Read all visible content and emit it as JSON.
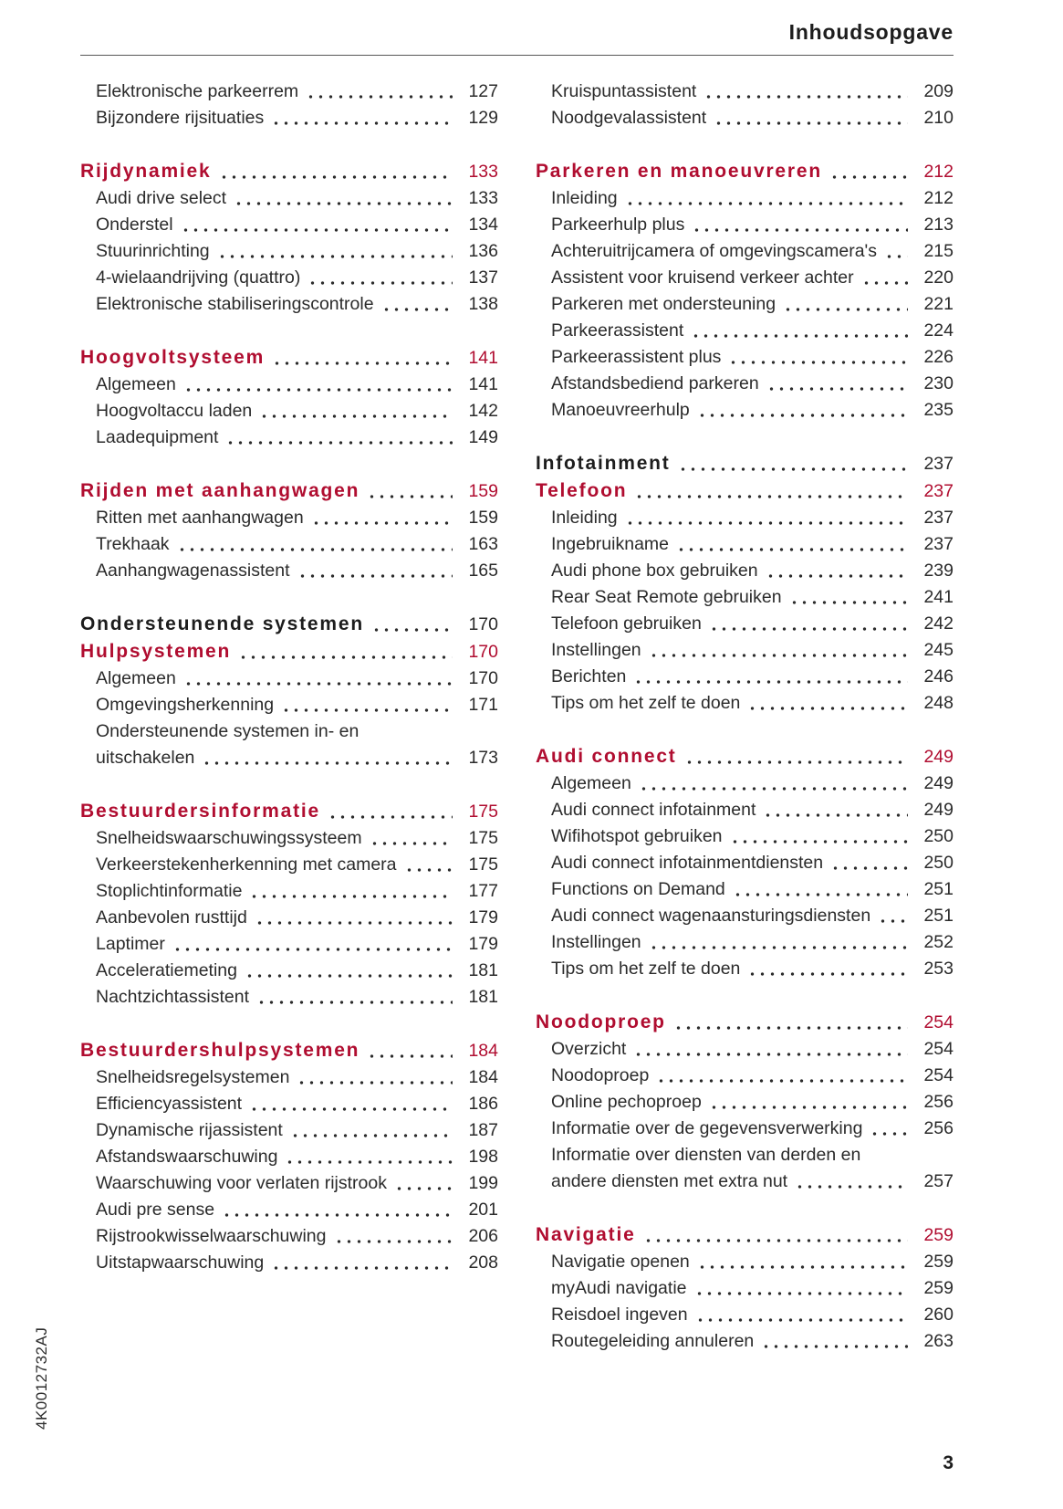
{
  "page": {
    "header_title": "Inhoudsopgave",
    "page_number": "3",
    "spine_code": "4K0012732AJ"
  },
  "colors": {
    "accent_red": "#b00d30",
    "text_dark": "#1d1d1d",
    "text_body": "#2b2b2b",
    "rule_gray": "#575757"
  },
  "toc": {
    "columns": [
      {
        "groups": [
          {
            "entries": [
              {
                "label": "Elektronische parkeerrem",
                "page": "127",
                "style": "sub"
              },
              {
                "label": "Bijzondere rijsituaties",
                "page": "129",
                "style": "sub"
              }
            ]
          },
          {
            "entries": [
              {
                "label": "Rijdynamiek",
                "page": "133",
                "style": "red"
              },
              {
                "label": "Audi drive select",
                "page": "133",
                "style": "sub"
              },
              {
                "label": "Onderstel",
                "page": "134",
                "style": "sub"
              },
              {
                "label": "Stuurinrichting",
                "page": "136",
                "style": "sub"
              },
              {
                "label": "4-wielaandrijving (quattro)",
                "page": "137",
                "style": "sub"
              },
              {
                "label": "Elektronische stabiliseringscontrole",
                "page": "138",
                "style": "sub"
              }
            ]
          },
          {
            "entries": [
              {
                "label": "Hoogvoltsysteem",
                "page": "141",
                "style": "red"
              },
              {
                "label": "Algemeen",
                "page": "141",
                "style": "sub"
              },
              {
                "label": "Hoogvoltaccu laden",
                "page": "142",
                "style": "sub"
              },
              {
                "label": "Laadequipment",
                "page": "149",
                "style": "sub"
              }
            ]
          },
          {
            "entries": [
              {
                "label": "Rijden met aanhangwagen",
                "page": "159",
                "style": "red"
              },
              {
                "label": "Ritten met aanhangwagen",
                "page": "159",
                "style": "sub"
              },
              {
                "label": "Trekhaak",
                "page": "163",
                "style": "sub"
              },
              {
                "label": "Aanhangwagenassistent",
                "page": "165",
                "style": "sub"
              }
            ]
          },
          {
            "entries": [
              {
                "label": "Ondersteunende systemen",
                "page": "170",
                "style": "black"
              },
              {
                "label": "Hulpsystemen",
                "page": "170",
                "style": "red"
              },
              {
                "label": "Algemeen",
                "page": "170",
                "style": "sub"
              },
              {
                "label": "Omgevingsherkenning",
                "page": "171",
                "style": "sub"
              },
              {
                "label": "Ondersteunende systemen in- en",
                "page": "",
                "style": "sub"
              },
              {
                "label": "uitschakelen",
                "page": "173",
                "style": "sub"
              }
            ]
          },
          {
            "entries": [
              {
                "label": "Bestuurdersinformatie",
                "page": "175",
                "style": "red"
              },
              {
                "label": "Snelheidswaarschuwingssysteem",
                "page": "175",
                "style": "sub"
              },
              {
                "label": "Verkeerstekenherkenning met camera",
                "page": "175",
                "style": "sub"
              },
              {
                "label": "Stoplichtinformatie",
                "page": "177",
                "style": "sub"
              },
              {
                "label": "Aanbevolen rusttijd",
                "page": "179",
                "style": "sub"
              },
              {
                "label": "Laptimer",
                "page": "179",
                "style": "sub"
              },
              {
                "label": "Acceleratiemeting",
                "page": "181",
                "style": "sub"
              },
              {
                "label": "Nachtzichtassistent",
                "page": "181",
                "style": "sub"
              }
            ]
          },
          {
            "entries": [
              {
                "label": "Bestuurdershulpsystemen",
                "page": "184",
                "style": "red"
              },
              {
                "label": "Snelheidsregelsystemen",
                "page": "184",
                "style": "sub"
              },
              {
                "label": "Efficiencyassistent",
                "page": "186",
                "style": "sub"
              },
              {
                "label": "Dynamische rijassistent",
                "page": "187",
                "style": "sub"
              },
              {
                "label": "Afstandswaarschuwing",
                "page": "198",
                "style": "sub"
              },
              {
                "label": "Waarschuwing voor verlaten rijstrook",
                "page": "199",
                "style": "sub"
              },
              {
                "label": "Audi pre sense",
                "page": "201",
                "style": "sub"
              },
              {
                "label": "Rijstrookwisselwaarschuwing",
                "page": "206",
                "style": "sub"
              },
              {
                "label": "Uitstapwaarschuwing",
                "page": "208",
                "style": "sub"
              }
            ]
          }
        ]
      },
      {
        "groups": [
          {
            "entries": [
              {
                "label": "Kruispuntassistent",
                "page": "209",
                "style": "sub"
              },
              {
                "label": "Noodgevalassistent",
                "page": "210",
                "style": "sub"
              }
            ]
          },
          {
            "entries": [
              {
                "label": "Parkeren en manoeuvreren",
                "page": "212",
                "style": "red"
              },
              {
                "label": "Inleiding",
                "page": "212",
                "style": "sub"
              },
              {
                "label": "Parkeerhulp plus",
                "page": "213",
                "style": "sub"
              },
              {
                "label": "Achteruitrijcamera of omgevingscamera's",
                "page": "215",
                "style": "sub"
              },
              {
                "label": "Assistent voor kruisend verkeer achter",
                "page": "220",
                "style": "sub"
              },
              {
                "label": "Parkeren met ondersteuning",
                "page": "221",
                "style": "sub"
              },
              {
                "label": "Parkeerassistent",
                "page": "224",
                "style": "sub"
              },
              {
                "label": "Parkeerassistent plus",
                "page": "226",
                "style": "sub"
              },
              {
                "label": "Afstandsbediend parkeren",
                "page": "230",
                "style": "sub"
              },
              {
                "label": "Manoeuvreerhulp",
                "page": "235",
                "style": "sub"
              }
            ]
          },
          {
            "entries": [
              {
                "label": "Infotainment",
                "page": "237",
                "style": "black"
              },
              {
                "label": "Telefoon",
                "page": "237",
                "style": "red"
              },
              {
                "label": "Inleiding",
                "page": "237",
                "style": "sub"
              },
              {
                "label": "Ingebruikname",
                "page": "237",
                "style": "sub"
              },
              {
                "label": "Audi phone box gebruiken",
                "page": "239",
                "style": "sub"
              },
              {
                "label": "Rear Seat Remote gebruiken",
                "page": "241",
                "style": "sub"
              },
              {
                "label": "Telefoon gebruiken",
                "page": "242",
                "style": "sub"
              },
              {
                "label": "Instellingen",
                "page": "245",
                "style": "sub"
              },
              {
                "label": "Berichten",
                "page": "246",
                "style": "sub"
              },
              {
                "label": "Tips om het zelf te doen",
                "page": "248",
                "style": "sub"
              }
            ]
          },
          {
            "entries": [
              {
                "label": "Audi connect",
                "page": "249",
                "style": "red"
              },
              {
                "label": "Algemeen",
                "page": "249",
                "style": "sub"
              },
              {
                "label": "Audi connect infotainment",
                "page": "249",
                "style": "sub"
              },
              {
                "label": "Wifihotspot gebruiken",
                "page": "250",
                "style": "sub"
              },
              {
                "label": "Audi connect infotainmentdiensten",
                "page": "250",
                "style": "sub"
              },
              {
                "label": "Functions on Demand",
                "page": "251",
                "style": "sub"
              },
              {
                "label": "Audi connect wagenaansturingsdiensten",
                "page": "251",
                "style": "sub"
              },
              {
                "label": "Instellingen",
                "page": "252",
                "style": "sub"
              },
              {
                "label": "Tips om het zelf te doen",
                "page": "253",
                "style": "sub"
              }
            ]
          },
          {
            "entries": [
              {
                "label": "Noodoproep",
                "page": "254",
                "style": "red"
              },
              {
                "label": "Overzicht",
                "page": "254",
                "style": "sub"
              },
              {
                "label": "Noodoproep",
                "page": "254",
                "style": "sub"
              },
              {
                "label": "Online pechoproep",
                "page": "256",
                "style": "sub"
              },
              {
                "label": "Informatie over de gegevensverwerking",
                "page": "256",
                "style": "sub"
              },
              {
                "label": "Informatie over diensten van derden en",
                "page": "",
                "style": "sub"
              },
              {
                "label": "andere diensten met extra nut",
                "page": "257",
                "style": "sub"
              }
            ]
          },
          {
            "entries": [
              {
                "label": "Navigatie",
                "page": "259",
                "style": "red"
              },
              {
                "label": "Navigatie openen",
                "page": "259",
                "style": "sub"
              },
              {
                "label": "myAudi navigatie",
                "page": "259",
                "style": "sub"
              },
              {
                "label": "Reisdoel ingeven",
                "page": "260",
                "style": "sub"
              },
              {
                "label": "Routegeleiding annuleren",
                "page": "263",
                "style": "sub"
              }
            ]
          }
        ]
      }
    ]
  }
}
